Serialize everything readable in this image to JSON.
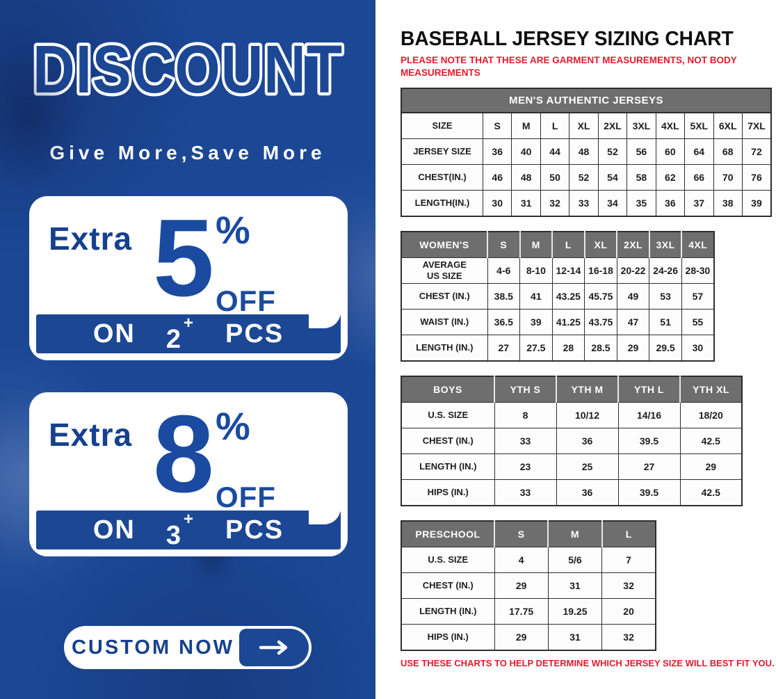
{
  "left_panel": {
    "title": "DISCOUNT",
    "tagline": "Give More,Save More",
    "offers": [
      {
        "extra": "Extra",
        "amount": "5",
        "percent": "%",
        "off_label": "OFF",
        "on_label": "ON",
        "quantity": "2",
        "plus": "+",
        "unit_label": "PCS"
      },
      {
        "extra": "Extra",
        "amount": "8",
        "percent": "%",
        "off_label": "OFF",
        "on_label": "ON",
        "quantity": "3",
        "plus": "+",
        "unit_label": "PCS"
      }
    ],
    "cta_label": "CUSTOM NOW",
    "cta_icon": "arrow-right-icon"
  },
  "right_panel": {
    "title": "BASEBALL JERSEY SIZING CHART",
    "top_note": "PLEASE NOTE THAT THESE ARE GARMENT MEASUREMENTS, NOT BODY MEASUREMENTS",
    "bottom_note": "USE THESE CHARTS TO HELP DETERMINE WHICH JERSEY SIZE WILL BEST FIT YOU."
  },
  "colors": {
    "panel_blue": "#1c4795",
    "text_blue": "#16418f",
    "note_red": "#e01b2c",
    "header_gray": "#6e6e6e"
  },
  "tables": [
    {
      "id": "mens",
      "caption": "MEN'S AUTHENTIC JERSEYS",
      "header": null,
      "rows": [
        [
          "SIZE",
          "S",
          "M",
          "L",
          "XL",
          "2XL",
          "3XL",
          "4XL",
          "5XL",
          "6XL",
          "7XL"
        ],
        [
          "JERSEY SIZE",
          "36",
          "40",
          "44",
          "48",
          "52",
          "56",
          "60",
          "64",
          "68",
          "72"
        ],
        [
          "CHEST(IN.)",
          "46",
          "48",
          "50",
          "52",
          "54",
          "58",
          "62",
          "66",
          "70",
          "76"
        ],
        [
          "LENGTH(IN.)",
          "30",
          "31",
          "32",
          "33",
          "34",
          "35",
          "36",
          "37",
          "38",
          "39"
        ]
      ]
    },
    {
      "id": "womens",
      "caption": null,
      "header": [
        "WOMEN'S",
        "S",
        "M",
        "L",
        "XL",
        "2XL",
        "3XL",
        "4XL"
      ],
      "rows": [
        [
          "AVERAGE\nUS SIZE",
          "4-6",
          "8-10",
          "12-14",
          "16-18",
          "20-22",
          "24-26",
          "28-30"
        ],
        [
          "CHEST (IN.)",
          "38.5",
          "41",
          "43.25",
          "45.75",
          "49",
          "53",
          "57"
        ],
        [
          "WAIST (IN.)",
          "36.5",
          "39",
          "41.25",
          "43.75",
          "47",
          "51",
          "55"
        ],
        [
          "LENGTH (IN.)",
          "27",
          "27.5",
          "28",
          "28.5",
          "29",
          "29.5",
          "30"
        ]
      ]
    },
    {
      "id": "boys",
      "caption": null,
      "header": [
        "BOYS",
        "YTH S",
        "YTH M",
        "YTH L",
        "YTH XL"
      ],
      "rows": [
        [
          "U.S. SIZE",
          "8",
          "10/12",
          "14/16",
          "18/20"
        ],
        [
          "CHEST (IN.)",
          "33",
          "36",
          "39.5",
          "42.5"
        ],
        [
          "LENGTH (IN.)",
          "23",
          "25",
          "27",
          "29"
        ],
        [
          "HIPS (IN.)",
          "33",
          "36",
          "39.5",
          "42.5"
        ]
      ]
    },
    {
      "id": "preschool",
      "caption": null,
      "header": [
        "PRESCHOOL",
        "S",
        "M",
        "L"
      ],
      "rows": [
        [
          "U.S. SIZE",
          "4",
          "5/6",
          "7"
        ],
        [
          "CHEST (IN.)",
          "29",
          "31",
          "32"
        ],
        [
          "LENGTH (IN.)",
          "17.75",
          "19.25",
          "20"
        ],
        [
          "HIPS (IN.)",
          "29",
          "31",
          "32"
        ]
      ]
    }
  ]
}
